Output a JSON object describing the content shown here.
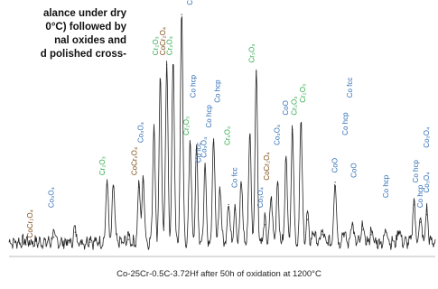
{
  "intro_text": [
    "alance under dry",
    "0°C) followed by",
    "nal oxides and",
    "d polished cross-"
  ],
  "caption": "Co-25Cr-0.5C-3.72Hf after 50h of oxidation at 1200°C",
  "colors": {
    "blue": "#2e6db5",
    "green": "#2ea84a",
    "brown": "#7a4a12",
    "trace": "#222222"
  },
  "chart_data": {
    "type": "line",
    "title": "",
    "xlabel": "",
    "ylabel": "",
    "xlim": [
      0,
      100
    ],
    "ylim": [
      0,
      100
    ],
    "grid": false,
    "peaks": [
      {
        "x": 4.0,
        "y": 4
      },
      {
        "x": 10.5,
        "y": 7
      },
      {
        "x": 15.5,
        "y": 9
      },
      {
        "x": 19.0,
        "y": 5
      },
      {
        "x": 23.0,
        "y": 28
      },
      {
        "x": 24.5,
        "y": 27
      },
      {
        "x": 28.0,
        "y": 6
      },
      {
        "x": 30.5,
        "y": 27
      },
      {
        "x": 31.5,
        "y": 29
      },
      {
        "x": 34.0,
        "y": 50
      },
      {
        "x": 35.5,
        "y": 70
      },
      {
        "x": 37.0,
        "y": 76
      },
      {
        "x": 38.5,
        "y": 76
      },
      {
        "x": 40.5,
        "y": 96
      },
      {
        "x": 42.5,
        "y": 44
      },
      {
        "x": 44.0,
        "y": 40
      },
      {
        "x": 46.0,
        "y": 34
      },
      {
        "x": 48.0,
        "y": 45
      },
      {
        "x": 49.5,
        "y": 26
      },
      {
        "x": 51.5,
        "y": 20
      },
      {
        "x": 53.0,
        "y": 18
      },
      {
        "x": 54.5,
        "y": 28
      },
      {
        "x": 56.5,
        "y": 48
      },
      {
        "x": 58.0,
        "y": 73
      },
      {
        "x": 60.0,
        "y": 12
      },
      {
        "x": 61.5,
        "y": 22
      },
      {
        "x": 63.0,
        "y": 28
      },
      {
        "x": 65.0,
        "y": 38
      },
      {
        "x": 66.5,
        "y": 50
      },
      {
        "x": 68.5,
        "y": 52
      },
      {
        "x": 70.0,
        "y": 14
      },
      {
        "x": 71.5,
        "y": 8
      },
      {
        "x": 73.5,
        "y": 8
      },
      {
        "x": 76.5,
        "y": 29
      },
      {
        "x": 78.5,
        "y": 8
      },
      {
        "x": 80.5,
        "y": 12
      },
      {
        "x": 83.0,
        "y": 10
      },
      {
        "x": 85.0,
        "y": 8
      },
      {
        "x": 88.5,
        "y": 9
      },
      {
        "x": 91.5,
        "y": 9
      },
      {
        "x": 95.0,
        "y": 20
      },
      {
        "x": 96.5,
        "y": 13
      },
      {
        "x": 98.0,
        "y": 16
      }
    ],
    "annotations": [
      {
        "label": "CoCr₂O₄",
        "x": 5.5,
        "y": 6,
        "color": "brown"
      },
      {
        "label": "Co₃O₄",
        "x": 10.5,
        "y": 18,
        "color": "blue"
      },
      {
        "label": "Cr₂O₃",
        "x": 22.5,
        "y": 31,
        "color": "green"
      },
      {
        "label": "CoCr₂O₄",
        "x": 30.0,
        "y": 31,
        "color": "brown"
      },
      {
        "label": "Co₃O₄",
        "x": 31.5,
        "y": 44,
        "color": "blue"
      },
      {
        "label": "Cr₂O₃",
        "x": 35.0,
        "y": 79,
        "color": "green"
      },
      {
        "label": "CoCr₂O₄",
        "x": 36.6,
        "y": 79,
        "color": "brown"
      },
      {
        "label": "Cr₂O₃",
        "x": 38.2,
        "y": 79,
        "color": "green"
      },
      {
        "label": "CoO",
        "x": 43.0,
        "y": 99,
        "color": "blue"
      },
      {
        "label": "Cr₂O₃",
        "x": 42.2,
        "y": 47,
        "color": "green"
      },
      {
        "label": "Co hcp",
        "x": 43.8,
        "y": 62,
        "color": "blue"
      },
      {
        "label": "Co fcc",
        "x": 45.0,
        "y": 36,
        "color": "blue"
      },
      {
        "label": "Co₃O₄",
        "x": 46.3,
        "y": 38,
        "color": "blue"
      },
      {
        "label": "Co hcp",
        "x": 47.5,
        "y": 50,
        "color": "blue"
      },
      {
        "label": "Co hcp",
        "x": 49.5,
        "y": 60,
        "color": "blue"
      },
      {
        "label": "Cr₂O₃",
        "x": 51.8,
        "y": 43,
        "color": "green"
      },
      {
        "label": "Co fcc",
        "x": 53.5,
        "y": 26,
        "color": "blue"
      },
      {
        "label": "Co₃O₄",
        "x": 59.5,
        "y": 18,
        "color": "blue"
      },
      {
        "label": "Cr₂O₃",
        "x": 57.5,
        "y": 76,
        "color": "green"
      },
      {
        "label": "CoCr₂O₄",
        "x": 61.0,
        "y": 29,
        "color": "brown"
      },
      {
        "label": "Co₃O₄",
        "x": 63.5,
        "y": 43,
        "color": "blue"
      },
      {
        "label": "CoO",
        "x": 65.5,
        "y": 55,
        "color": "blue"
      },
      {
        "label": "Cr₂O₃",
        "x": 67.5,
        "y": 55,
        "color": "green"
      },
      {
        "label": "Cr₂O₃",
        "x": 69.5,
        "y": 60,
        "color": "green"
      },
      {
        "label": "CoO",
        "x": 77.0,
        "y": 32,
        "color": "blue"
      },
      {
        "label": "Co hcp",
        "x": 79.5,
        "y": 47,
        "color": "blue"
      },
      {
        "label": "Co fcc",
        "x": 80.5,
        "y": 62,
        "color": "blue"
      },
      {
        "label": "CoO",
        "x": 81.5,
        "y": 30,
        "color": "blue"
      },
      {
        "label": "Co hcp",
        "x": 89.0,
        "y": 22,
        "color": "blue"
      },
      {
        "label": "Co hcp",
        "x": 96.0,
        "y": 28,
        "color": "blue"
      },
      {
        "label": "Co hcp",
        "x": 97.0,
        "y": 18,
        "color": "blue"
      },
      {
        "label": "Co₃O₄",
        "x": 98.5,
        "y": 24,
        "color": "blue"
      },
      {
        "label": "Co₃O₄",
        "x": 98.5,
        "y": 42,
        "color": "blue"
      }
    ]
  }
}
